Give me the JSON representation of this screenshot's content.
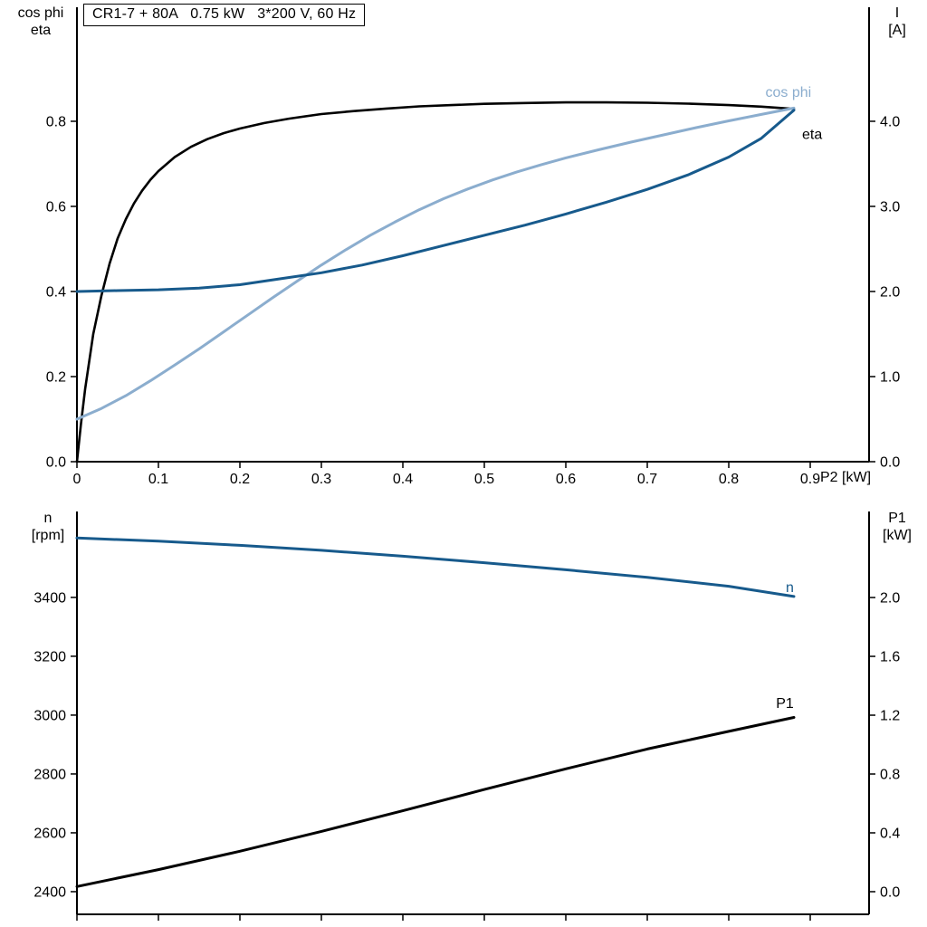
{
  "colors": {
    "black": "#000000",
    "dark_blue": "#175a8c",
    "light_blue": "#8badce",
    "axis": "#000000",
    "background": "#ffffff"
  },
  "corner_labels": {
    "top_left_line1": "cos phi",
    "top_left_line2": "eta",
    "top_right_line1": "I",
    "top_right_line2": "[A]",
    "bottom_left_line1": "n",
    "bottom_left_line2": "[rpm]",
    "bottom_right_line1": "P1",
    "bottom_right_line2": "[kW]"
  },
  "chart_data": [
    {
      "type": "line",
      "title": "CR1-7 + 80A   0.75 kW   3*200 V, 60 Hz",
      "grid": false,
      "legend": "curve-end-labels",
      "x_axis": {
        "label": "P2 [kW]",
        "min": 0,
        "max": 0.9722,
        "tick_values": [
          0,
          0.1,
          0.2,
          0.3,
          0.4,
          0.5,
          0.6,
          0.7,
          0.8,
          0.9
        ],
        "tick_labels": [
          "0",
          "0.1",
          "0.2",
          "0.3",
          "0.4",
          "0.5",
          "0.6",
          "0.7",
          "0.8",
          "0.9"
        ]
      },
      "left_axis": {
        "label": "cos phi / eta",
        "min": 0,
        "max": 1.068,
        "tick_values": [
          0,
          0.2,
          0.4,
          0.6,
          0.8
        ],
        "tick_labels": [
          "0.0",
          "0.2",
          "0.4",
          "0.6",
          "0.8"
        ]
      },
      "right_axis": {
        "label": "I [A]",
        "min": 0,
        "max": 5.34,
        "tick_values": [
          0,
          1,
          2,
          3,
          4
        ],
        "tick_labels": [
          "0.0",
          "1.0",
          "2.0",
          "3.0",
          "4.0"
        ]
      },
      "series": [
        {
          "name": "eta",
          "axis": "left",
          "color_key": "black",
          "width": 2.6,
          "label": "eta",
          "label_at": [
            0.89,
            0.758
          ],
          "points": [
            [
              0,
              0
            ],
            [
              0.005,
              0.09
            ],
            [
              0.01,
              0.17
            ],
            [
              0.02,
              0.3
            ],
            [
              0.03,
              0.39
            ],
            [
              0.04,
              0.465
            ],
            [
              0.05,
              0.525
            ],
            [
              0.06,
              0.57
            ],
            [
              0.07,
              0.607
            ],
            [
              0.08,
              0.637
            ],
            [
              0.09,
              0.662
            ],
            [
              0.1,
              0.683
            ],
            [
              0.12,
              0.716
            ],
            [
              0.14,
              0.74
            ],
            [
              0.16,
              0.758
            ],
            [
              0.18,
              0.772
            ],
            [
              0.2,
              0.783
            ],
            [
              0.23,
              0.796
            ],
            [
              0.26,
              0.806
            ],
            [
              0.3,
              0.817
            ],
            [
              0.34,
              0.824
            ],
            [
              0.38,
              0.83
            ],
            [
              0.42,
              0.835
            ],
            [
              0.46,
              0.838
            ],
            [
              0.5,
              0.841
            ],
            [
              0.55,
              0.843
            ],
            [
              0.6,
              0.8445
            ],
            [
              0.65,
              0.8445
            ],
            [
              0.7,
              0.8435
            ],
            [
              0.75,
              0.8415
            ],
            [
              0.8,
              0.838
            ],
            [
              0.84,
              0.8345
            ],
            [
              0.88,
              0.829
            ]
          ]
        },
        {
          "name": "cos-phi",
          "axis": "left",
          "color_key": "light_blue",
          "width": 3,
          "label": "cos phi",
          "label_at": [
            0.845,
            0.857
          ],
          "points": [
            [
              0,
              0.1
            ],
            [
              0.03,
              0.125
            ],
            [
              0.06,
              0.155
            ],
            [
              0.09,
              0.19
            ],
            [
              0.12,
              0.227
            ],
            [
              0.15,
              0.265
            ],
            [
              0.18,
              0.305
            ],
            [
              0.21,
              0.345
            ],
            [
              0.24,
              0.385
            ],
            [
              0.27,
              0.424
            ],
            [
              0.3,
              0.462
            ],
            [
              0.33,
              0.498
            ],
            [
              0.36,
              0.532
            ],
            [
              0.39,
              0.563
            ],
            [
              0.42,
              0.592
            ],
            [
              0.45,
              0.618
            ],
            [
              0.48,
              0.641
            ],
            [
              0.51,
              0.662
            ],
            [
              0.54,
              0.681
            ],
            [
              0.57,
              0.698
            ],
            [
              0.6,
              0.714
            ],
            [
              0.64,
              0.733
            ],
            [
              0.68,
              0.751
            ],
            [
              0.72,
              0.768
            ],
            [
              0.76,
              0.785
            ],
            [
              0.8,
              0.801
            ],
            [
              0.84,
              0.816
            ],
            [
              0.88,
              0.831
            ]
          ]
        },
        {
          "name": "current-I",
          "axis": "right",
          "color_key": "dark_blue",
          "width": 3,
          "label": "",
          "label_at": [
            0,
            0
          ],
          "points": [
            [
              0,
              2.0
            ],
            [
              0.05,
              2.01
            ],
            [
              0.1,
              2.02
            ],
            [
              0.15,
              2.04
            ],
            [
              0.2,
              2.08
            ],
            [
              0.25,
              2.15
            ],
            [
              0.3,
              2.22
            ],
            [
              0.35,
              2.31
            ],
            [
              0.4,
              2.42
            ],
            [
              0.45,
              2.54
            ],
            [
              0.5,
              2.66
            ],
            [
              0.55,
              2.78
            ],
            [
              0.6,
              2.91
            ],
            [
              0.65,
              3.05
            ],
            [
              0.7,
              3.2
            ],
            [
              0.75,
              3.37
            ],
            [
              0.8,
              3.58
            ],
            [
              0.84,
              3.8
            ],
            [
              0.88,
              4.13
            ]
          ]
        }
      ]
    },
    {
      "type": "line",
      "title": "",
      "grid": false,
      "legend": "curve-end-labels",
      "x_axis": {
        "label": "",
        "min": 0,
        "max": 0.9722,
        "tick_values": [
          0,
          0.1,
          0.2,
          0.3,
          0.4,
          0.5,
          0.6,
          0.7,
          0.8,
          0.9
        ],
        "tick_labels": [
          "",
          "",
          "",
          "",
          "",
          "",
          "",
          "",
          "",
          ""
        ]
      },
      "left_axis": {
        "label": "n [rpm]",
        "min": 2323,
        "max": 3692,
        "tick_values": [
          2400,
          2600,
          2800,
          3000,
          3200,
          3400
        ],
        "tick_labels": [
          "2400",
          "2600",
          "2800",
          "3000",
          "3200",
          "3400"
        ]
      },
      "right_axis": {
        "label": "P1 [kW]",
        "min": -0.154,
        "max": 2.585,
        "tick_values": [
          0,
          0.4,
          0.8,
          1.2,
          1.6,
          2.0
        ],
        "tick_labels": [
          "0.0",
          "0.4",
          "0.8",
          "1.2",
          "1.6",
          "2.0"
        ]
      },
      "series": [
        {
          "name": "speed-n",
          "axis": "left",
          "color_key": "dark_blue",
          "width": 3,
          "label": "n",
          "label_at": [
            0.87,
            3418
          ],
          "points": [
            [
              0,
              3602
            ],
            [
              0.1,
              3591
            ],
            [
              0.2,
              3577
            ],
            [
              0.3,
              3560
            ],
            [
              0.4,
              3540
            ],
            [
              0.5,
              3518
            ],
            [
              0.6,
              3494
            ],
            [
              0.7,
              3468
            ],
            [
              0.8,
              3438
            ],
            [
              0.88,
              3403
            ]
          ]
        },
        {
          "name": "power-P1",
          "axis": "right",
          "color_key": "black",
          "width": 3,
          "label": "P1",
          "label_at": [
            0.858,
            1.25
          ],
          "points": [
            [
              0,
              0.035
            ],
            [
              0.1,
              0.15
            ],
            [
              0.2,
              0.275
            ],
            [
              0.3,
              0.41
            ],
            [
              0.4,
              0.55
            ],
            [
              0.5,
              0.695
            ],
            [
              0.6,
              0.835
            ],
            [
              0.7,
              0.97
            ],
            [
              0.8,
              1.09
            ],
            [
              0.88,
              1.185
            ]
          ]
        }
      ]
    }
  ]
}
